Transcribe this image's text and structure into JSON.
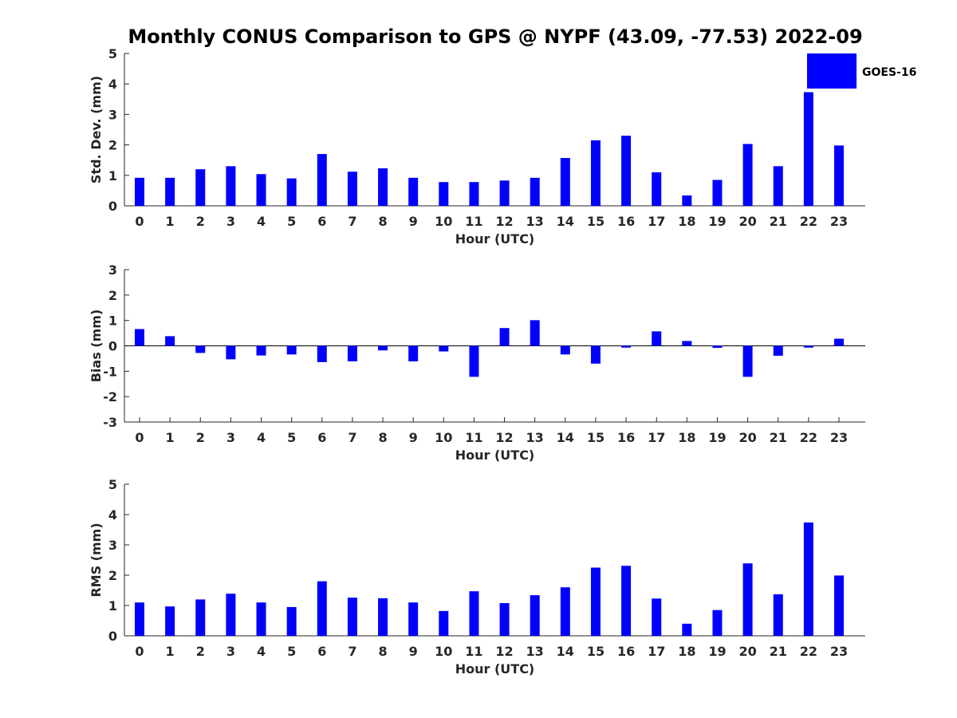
{
  "title": "Monthly CONUS Comparison to GPS @ NYPF (43.09, -77.53) 2022-09",
  "legend": {
    "label": "GOES-16",
    "color": "#0000ff",
    "placement": "top-right"
  },
  "chart_data": [
    {
      "type": "bar",
      "categories": [
        "0",
        "1",
        "2",
        "3",
        "4",
        "5",
        "6",
        "7",
        "8",
        "9",
        "10",
        "11",
        "12",
        "13",
        "14",
        "15",
        "16",
        "17",
        "18",
        "19",
        "20",
        "21",
        "22",
        "23"
      ],
      "series": [
        {
          "name": "GOES-16",
          "values": [
            0.92,
            0.92,
            1.2,
            1.3,
            1.04,
            0.9,
            1.7,
            1.12,
            1.23,
            0.92,
            0.78,
            0.78,
            0.83,
            0.92,
            1.57,
            2.15,
            2.3,
            1.1,
            0.34,
            0.85,
            2.03,
            1.3,
            3.73,
            1.98
          ]
        }
      ],
      "xlabel": "Hour (UTC)",
      "ylabel": "Std. Dev. (mm)",
      "ylim": [
        0,
        5
      ],
      "yticks": [
        "0",
        "1",
        "2",
        "3",
        "4",
        "5"
      ]
    },
    {
      "type": "bar",
      "categories": [
        "0",
        "1",
        "2",
        "3",
        "4",
        "5",
        "6",
        "7",
        "8",
        "9",
        "10",
        "11",
        "12",
        "13",
        "14",
        "15",
        "16",
        "17",
        "18",
        "19",
        "20",
        "21",
        "22",
        "23"
      ],
      "series": [
        {
          "name": "GOES-16",
          "values": [
            0.66,
            0.38,
            -0.28,
            -0.53,
            -0.38,
            -0.34,
            -0.64,
            -0.61,
            -0.18,
            -0.61,
            -0.22,
            -1.22,
            0.7,
            1.01,
            -0.34,
            -0.7,
            -0.07,
            0.57,
            0.19,
            -0.08,
            -1.22,
            -0.39,
            -0.07,
            0.28
          ]
        }
      ],
      "xlabel": "Hour (UTC)",
      "ylabel": "Bias (mm)",
      "ylim": [
        -3,
        3
      ],
      "yticks": [
        "-3",
        "-2",
        "-1",
        "0",
        "1",
        "2",
        "3"
      ]
    },
    {
      "type": "bar",
      "categories": [
        "0",
        "1",
        "2",
        "3",
        "4",
        "5",
        "6",
        "7",
        "8",
        "9",
        "10",
        "11",
        "12",
        "13",
        "14",
        "15",
        "16",
        "17",
        "18",
        "19",
        "20",
        "21",
        "22",
        "23"
      ],
      "series": [
        {
          "name": "GOES-16",
          "values": [
            1.1,
            0.97,
            1.2,
            1.39,
            1.1,
            0.95,
            1.8,
            1.26,
            1.24,
            1.1,
            0.82,
            1.47,
            1.08,
            1.34,
            1.6,
            2.25,
            2.31,
            1.23,
            0.4,
            0.85,
            2.39,
            1.37,
            3.74,
            1.99
          ]
        }
      ],
      "xlabel": "Hour (UTC)",
      "ylabel": "RMS (mm)",
      "ylim": [
        0,
        5
      ],
      "yticks": [
        "0",
        "1",
        "2",
        "3",
        "4",
        "5"
      ]
    }
  ]
}
